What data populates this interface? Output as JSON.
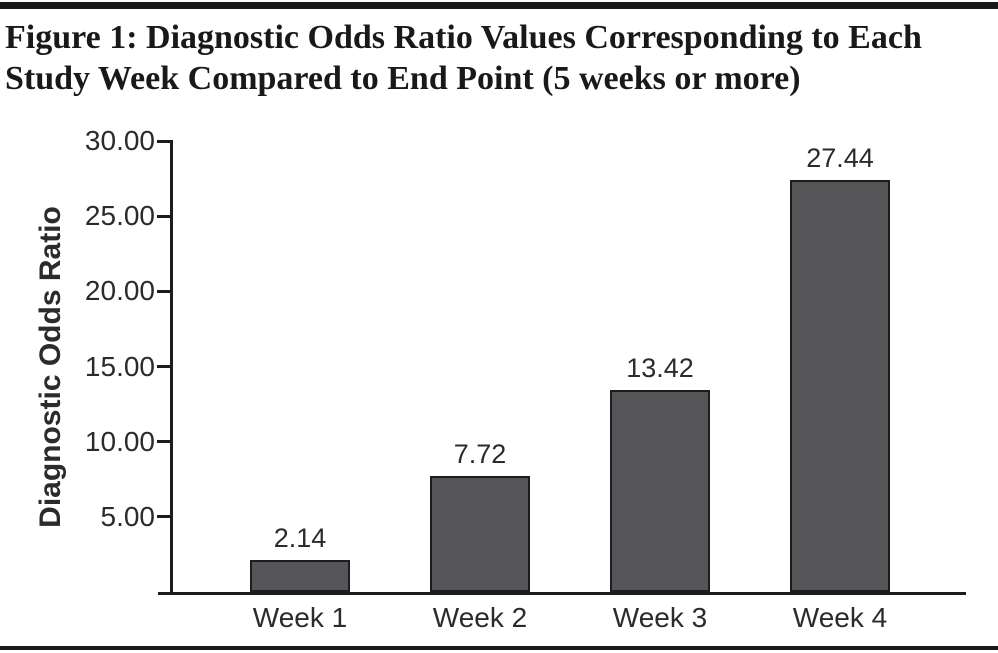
{
  "figure": {
    "title_line1": "Figure 1: Diagnostic Odds Ratio Values Corresponding to Each",
    "title_line2": "Study Week Compared to End Point (5 weeks or more)"
  },
  "chart_data": {
    "type": "bar",
    "title": "Figure 1: Diagnostic Odds Ratio Values Corresponding to Each Study Week Compared to End Point (5 weeks or more)",
    "categories": [
      "Week 1",
      "Week 2",
      "Week 3",
      "Week 4"
    ],
    "values": [
      2.14,
      7.72,
      13.42,
      27.44
    ],
    "value_labels": [
      "2.14",
      "7.72",
      "13.42",
      "27.44"
    ],
    "xlabel": "",
    "ylabel": "Diagnostic Odds Ratio",
    "ylim": [
      0,
      30
    ],
    "yticks": [
      {
        "value": 5,
        "label": "5.00"
      },
      {
        "value": 10,
        "label": "10.00"
      },
      {
        "value": 15,
        "label": "15.00"
      },
      {
        "value": 20,
        "label": "20.00"
      },
      {
        "value": 25,
        "label": "25.00"
      },
      {
        "value": 30,
        "label": "30.00"
      }
    ],
    "grid": false,
    "legend": false,
    "colors": {
      "bar_fill": "#555557",
      "bar_border": "#1c1c1e",
      "axis": "#1c1c1e",
      "text": "#2b2b2d",
      "title_text": "#191919",
      "rule": "#1a1a1c"
    }
  }
}
